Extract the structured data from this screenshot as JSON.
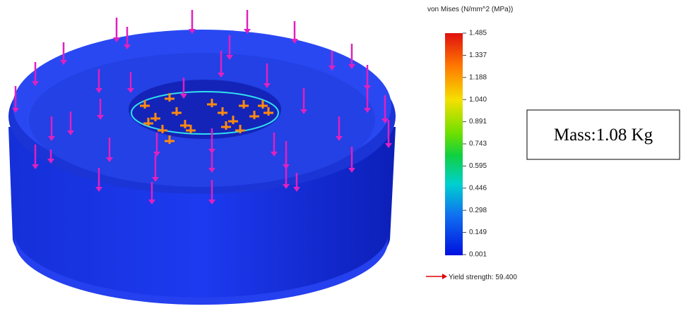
{
  "legend": {
    "title": "von Mises (N/mm^2 (MPa))",
    "ticks": [
      "1.485",
      "1.337",
      "1.188",
      "1.040",
      "0.891",
      "0.743",
      "0.595",
      "0.446",
      "0.298",
      "0.149",
      "0.001"
    ]
  },
  "yield_label": "Yield strength: 59.400",
  "mass_label": "Mass:1.08 Kg"
}
